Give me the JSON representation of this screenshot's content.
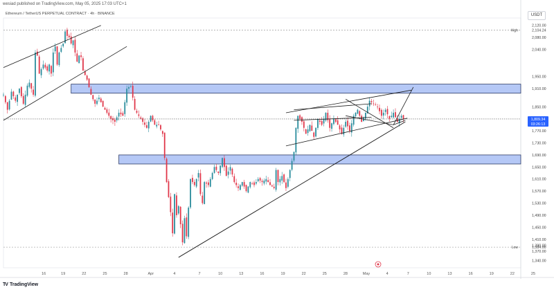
{
  "caption": "wesiad published on TradingView.com, May 05, 2025 17:03 UTC+1",
  "symbol_title": "Ethereum / TetherUS PERPETUAL CONTRACT · 4h · BINANCE",
  "currency": "USDT",
  "branding": "TradingView",
  "colors": {
    "up": "#2a8c9c",
    "down": "#e0374a",
    "zone_fill": "#a8bef5",
    "zone_stroke": "#2b3a66",
    "line": "#1b1b1b"
  },
  "chart_data": {
    "type": "candlestick",
    "title": "Ethereum / TetherUS PERPETUAL CONTRACT · 4h · BINANCE",
    "ylim": [
      1320,
      2140
    ],
    "xlabels": [
      "16",
      "19",
      "22",
      "25",
      "28",
      "Apr",
      "4",
      "7",
      "10",
      "13",
      "16",
      "19",
      "22",
      "25",
      "28",
      "May",
      "4",
      "7",
      "10",
      "13",
      "16",
      "19",
      "22",
      "25"
    ],
    "ytick_labels": [
      "2,120.00",
      "2,080.00",
      "2,040.00",
      "1,950.00",
      "1,910.00",
      "1,850.00",
      "1,770.00",
      "1,730.00",
      "1,690.00",
      "1,650.00",
      "1,610.00",
      "1,570.00",
      "1,530.00",
      "1,490.00",
      "1,450.00",
      "1,410.00",
      "1,390.00",
      "1,370.00",
      "1,340.00"
    ],
    "ytick_values": [
      2120,
      2080,
      2040,
      1950,
      1910,
      1850,
      1770,
      1730,
      1690,
      1650,
      1610,
      1570,
      1530,
      1490,
      1450,
      1410,
      1390,
      1370,
      1340
    ],
    "high": {
      "label": "High",
      "value": 2104.24,
      "value_label": "2,104.24"
    },
    "low": {
      "label": "Low",
      "value": 1384.0,
      "value_label": "1,384.00"
    },
    "current": {
      "value_label": "1,809.34",
      "countdown": "03:26:13",
      "value": 1809.34
    },
    "zones": [
      {
        "from": 1895,
        "to": 1925
      },
      {
        "from": 1660,
        "to": 1690
      }
    ],
    "path": [
      [
        0,
        1890
      ],
      [
        2,
        1840
      ],
      [
        4,
        1900
      ],
      [
        6,
        1870
      ],
      [
        8,
        1910
      ],
      [
        10,
        1860
      ],
      [
        12,
        1920
      ],
      [
        13,
        1930
      ],
      [
        15,
        1890
      ],
      [
        16,
        2030
      ],
      [
        17,
        2020
      ],
      [
        18,
        1960
      ],
      [
        20,
        1990
      ],
      [
        22,
        1970
      ],
      [
        23,
        1990
      ],
      [
        24,
        1960
      ],
      [
        25,
        2030
      ],
      [
        26,
        2050
      ],
      [
        27,
        1990
      ],
      [
        28,
        2030
      ],
      [
        30,
        2060
      ],
      [
        31,
        2100
      ],
      [
        32,
        2085
      ],
      [
        33,
        2080
      ],
      [
        34,
        2060
      ],
      [
        35,
        2070
      ],
      [
        36,
        2030
      ],
      [
        37,
        2000
      ],
      [
        38,
        2020
      ],
      [
        39,
        2015
      ],
      [
        40,
        1970
      ],
      [
        42,
        1940
      ],
      [
        44,
        1890
      ],
      [
        46,
        1860
      ],
      [
        48,
        1880
      ],
      [
        50,
        1850
      ],
      [
        52,
        1830
      ],
      [
        54,
        1810
      ],
      [
        56,
        1800
      ],
      [
        58,
        1830
      ],
      [
        60,
        1820
      ],
      [
        62,
        1910
      ],
      [
        64,
        1920
      ],
      [
        65,
        1880
      ],
      [
        66,
        1840
      ],
      [
        68,
        1820
      ],
      [
        70,
        1800
      ],
      [
        72,
        1780
      ],
      [
        74,
        1820
      ],
      [
        76,
        1790
      ],
      [
        78,
        1790
      ],
      [
        80,
        1760
      ],
      [
        82,
        1600
      ],
      [
        84,
        1500
      ],
      [
        85,
        1430
      ],
      [
        86,
        1560
      ],
      [
        87,
        1490
      ],
      [
        88,
        1520
      ],
      [
        89,
        1460
      ],
      [
        90,
        1400
      ],
      [
        91,
        1480
      ],
      [
        92,
        1420
      ],
      [
        94,
        1610
      ],
      [
        96,
        1590
      ],
      [
        98,
        1630
      ],
      [
        99,
        1560
      ],
      [
        100,
        1530
      ],
      [
        101,
        1600
      ],
      [
        103,
        1590
      ],
      [
        104,
        1610
      ],
      [
        106,
        1650
      ],
      [
        108,
        1630
      ],
      [
        110,
        1680
      ],
      [
        112,
        1620
      ],
      [
        114,
        1650
      ],
      [
        116,
        1600
      ],
      [
        118,
        1580
      ],
      [
        120,
        1600
      ],
      [
        122,
        1570
      ],
      [
        124,
        1600
      ],
      [
        126,
        1590
      ],
      [
        128,
        1610
      ],
      [
        130,
        1600
      ],
      [
        132,
        1610
      ],
      [
        134,
        1590
      ],
      [
        136,
        1580
      ],
      [
        137,
        1640
      ],
      [
        138,
        1600
      ],
      [
        140,
        1620
      ],
      [
        142,
        1580
      ],
      [
        144,
        1640
      ],
      [
        146,
        1700
      ],
      [
        147,
        1780
      ],
      [
        148,
        1820
      ],
      [
        150,
        1800
      ],
      [
        152,
        1760
      ],
      [
        154,
        1790
      ],
      [
        156,
        1750
      ],
      [
        158,
        1810
      ],
      [
        160,
        1790
      ],
      [
        162,
        1830
      ],
      [
        164,
        1780
      ],
      [
        166,
        1810
      ],
      [
        168,
        1790
      ],
      [
        170,
        1760
      ],
      [
        172,
        1800
      ],
      [
        174,
        1770
      ],
      [
        176,
        1820
      ],
      [
        178,
        1840
      ],
      [
        180,
        1800
      ],
      [
        182,
        1830
      ],
      [
        184,
        1870
      ],
      [
        186,
        1860
      ],
      [
        188,
        1850
      ],
      [
        190,
        1820
      ],
      [
        192,
        1840
      ],
      [
        194,
        1810
      ],
      [
        196,
        1830
      ],
      [
        198,
        1800
      ],
      [
        200,
        1820
      ],
      [
        201,
        1809
      ]
    ]
  }
}
